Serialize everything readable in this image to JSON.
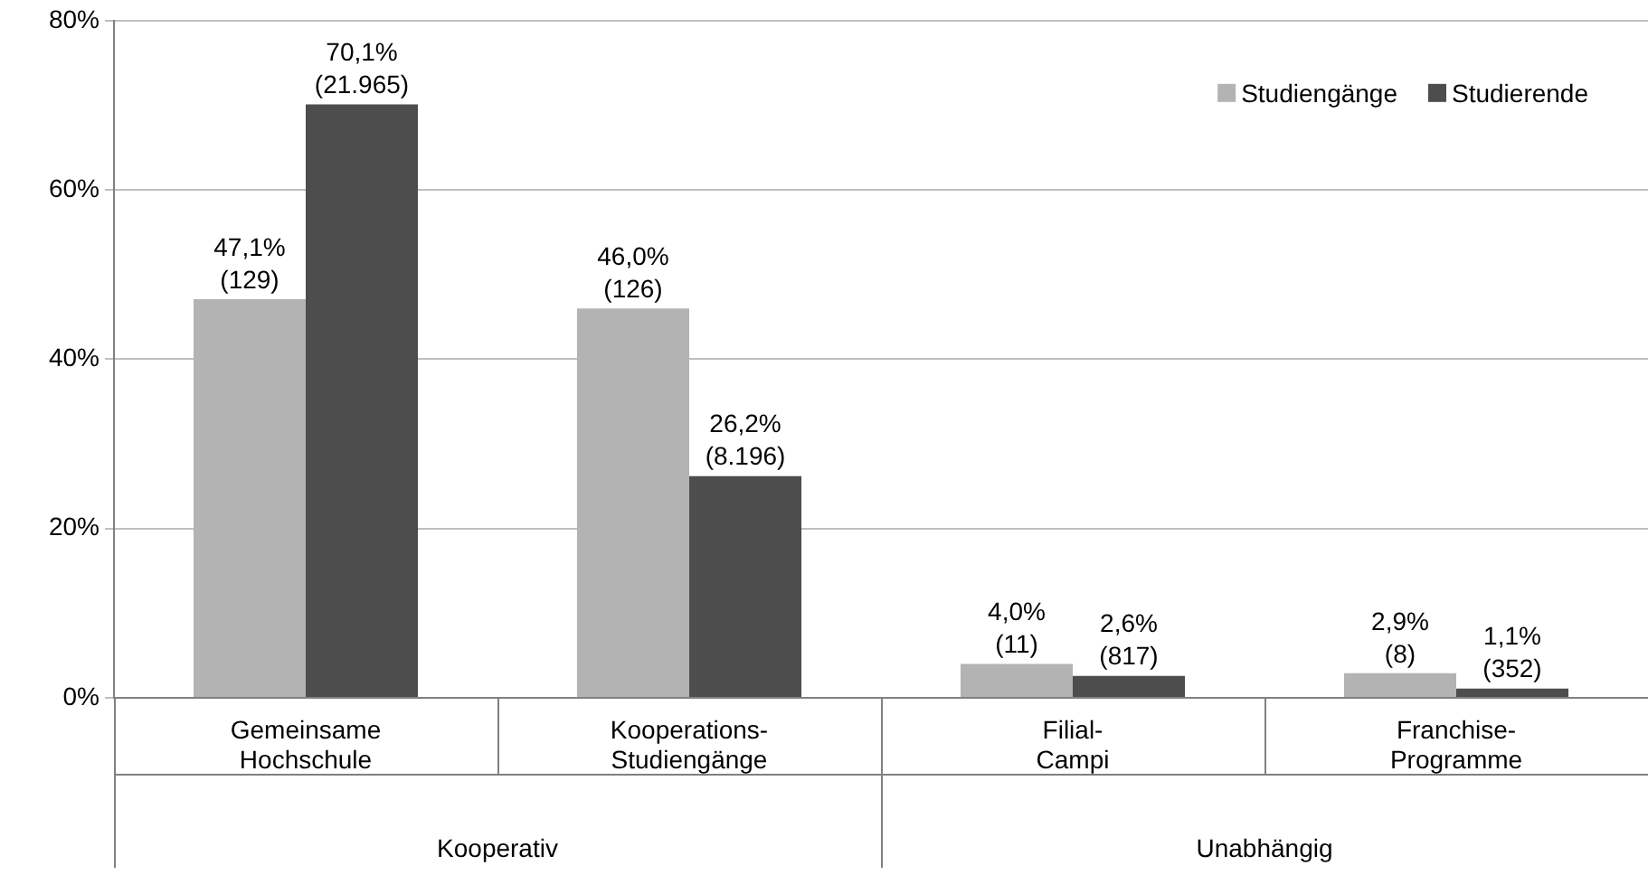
{
  "chart_data": {
    "type": "bar",
    "categories": [
      "Gemeinsame\nHochschule",
      "Kooperations-\nStudiengänge",
      "Filial-\nCampi",
      "Franchise-\nProgramme"
    ],
    "series": [
      {
        "name": "Studiengänge",
        "color": "#b3b3b3",
        "values": [
          47.1,
          46.0,
          4.0,
          2.9
        ],
        "value_labels": [
          "47,1%\n(129)",
          "46,0%\n(126)",
          "4,0%\n(11)",
          "2,9%\n(8)"
        ]
      },
      {
        "name": "Studierende",
        "color": "#4d4d4d",
        "values": [
          70.1,
          26.2,
          2.6,
          1.1
        ],
        "value_labels": [
          "70,1%\n(21.965)",
          "26,2%\n(8.196)",
          "2,6%\n(817)",
          "1,1%\n(352)"
        ]
      }
    ],
    "ylim": [
      0,
      80
    ],
    "yticks": [
      {
        "value": 0,
        "label": "0%"
      },
      {
        "value": 20,
        "label": "20%"
      },
      {
        "value": 40,
        "label": "40%"
      },
      {
        "value": 60,
        "label": "60%"
      },
      {
        "value": 80,
        "label": "80%"
      }
    ],
    "grid": "y",
    "legend": "top right",
    "annotations": [
      "Kooperativ",
      "Unabhängig"
    ]
  }
}
